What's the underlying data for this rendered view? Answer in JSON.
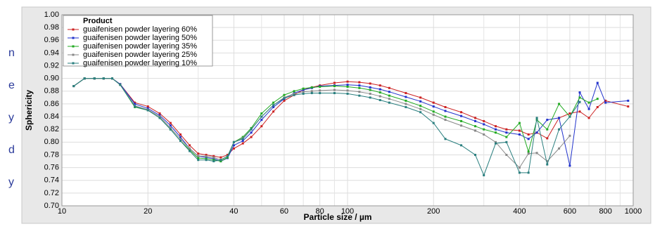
{
  "margin_text": [
    "n",
    "e",
    "y",
    "d",
    "y"
  ],
  "chart_data": {
    "type": "line",
    "xlabel": "Particle size / µm",
    "ylabel": "Sphericity",
    "legend_title": "Product",
    "legend": "top-left",
    "xscale": "log",
    "grid": true,
    "xlim": [
      10,
      1000
    ],
    "xticks": [
      10,
      20,
      40,
      60,
      80,
      100,
      200,
      400,
      600,
      800,
      1000
    ],
    "xminor": [
      30,
      50,
      70,
      90,
      300,
      500,
      700,
      900
    ],
    "ylim": [
      0.7,
      1.0
    ],
    "yticks": [
      {
        "value": 0.7,
        "label": "0.70"
      },
      {
        "value": 0.72,
        "label": "0.72"
      },
      {
        "value": 0.74,
        "label": "0.74"
      },
      {
        "value": 0.76,
        "label": "0.76"
      },
      {
        "value": 0.78,
        "label": "0.78"
      },
      {
        "value": 0.8,
        "label": "0.80"
      },
      {
        "value": 0.82,
        "label": "0.82"
      },
      {
        "value": 0.84,
        "label": "0.84"
      },
      {
        "value": 0.86,
        "label": "0.86"
      },
      {
        "value": 0.88,
        "label": "0.88"
      },
      {
        "value": 0.9,
        "label": "0.90"
      },
      {
        "value": 0.92,
        "label": "0.92"
      },
      {
        "value": 0.94,
        "label": "0.94"
      },
      {
        "value": 0.96,
        "label": "0.96"
      },
      {
        "value": 0.98,
        "label": "0.98"
      },
      {
        "value": 1.0,
        "label": "1.00"
      }
    ],
    "x": [
      11,
      12,
      13,
      14,
      15,
      16,
      18,
      20,
      22,
      24,
      26,
      28,
      30,
      32,
      34,
      36,
      38,
      40,
      43,
      46,
      50,
      55,
      60,
      65,
      70,
      75,
      80,
      90,
      100,
      110,
      120,
      130,
      140,
      160,
      180,
      200,
      220,
      250,
      280,
      300,
      330,
      360,
      400,
      430,
      460,
      500,
      550,
      600,
      650,
      700,
      750,
      800,
      960
    ],
    "series": [
      {
        "name": "guaifenisen powder layering 60%",
        "color": "#cc2222",
        "values": [
          0.888,
          0.9,
          0.9,
          0.9,
          0.9,
          0.891,
          0.862,
          0.856,
          0.845,
          0.83,
          0.812,
          0.795,
          0.782,
          0.78,
          0.778,
          0.776,
          0.78,
          0.79,
          0.798,
          0.808,
          0.825,
          0.848,
          0.865,
          0.874,
          0.882,
          0.886,
          0.889,
          0.893,
          0.895,
          0.894,
          0.892,
          0.889,
          0.885,
          0.877,
          0.87,
          0.862,
          0.855,
          0.847,
          0.838,
          0.833,
          0.825,
          0.82,
          0.818,
          0.812,
          0.815,
          0.806,
          0.838,
          0.845,
          0.848,
          0.838,
          0.855,
          0.865,
          0.856
        ]
      },
      {
        "name": "guaifenisen powder layering 50%",
        "color": "#2233cc",
        "values": [
          0.888,
          0.9,
          0.9,
          0.9,
          0.9,
          0.891,
          0.86,
          0.853,
          0.842,
          0.826,
          0.808,
          0.79,
          0.778,
          0.776,
          0.774,
          0.77,
          0.775,
          0.795,
          0.802,
          0.815,
          0.835,
          0.855,
          0.868,
          0.877,
          0.882,
          0.885,
          0.888,
          0.889,
          0.89,
          0.889,
          0.886,
          0.883,
          0.879,
          0.871,
          0.864,
          0.856,
          0.849,
          0.841,
          0.833,
          0.828,
          0.82,
          0.815,
          0.812,
          0.805,
          0.815,
          0.835,
          0.838,
          0.763,
          0.878,
          0.852,
          0.893,
          0.862,
          0.865
        ]
      },
      {
        "name": "guaifenisen powder layering 35%",
        "color": "#22aa22",
        "values": [
          0.888,
          0.9,
          0.9,
          0.9,
          0.9,
          0.89,
          0.855,
          0.85,
          0.838,
          0.82,
          0.802,
          0.788,
          0.775,
          0.774,
          0.772,
          0.77,
          0.776,
          0.8,
          0.808,
          0.822,
          0.845,
          0.862,
          0.874,
          0.88,
          0.884,
          0.886,
          0.887,
          0.888,
          0.887,
          0.885,
          0.882,
          0.878,
          0.873,
          0.865,
          0.857,
          0.848,
          0.84,
          0.833,
          0.825,
          0.82,
          0.815,
          0.808,
          0.83,
          0.785,
          0.835,
          0.82,
          0.86,
          0.84,
          0.87,
          0.862,
          0.868,
          null,
          null
        ]
      },
      {
        "name": "guaifenisen powder layering 25%",
        "color": "#888888",
        "values": [
          0.888,
          0.9,
          0.9,
          0.9,
          0.9,
          0.89,
          0.857,
          0.851,
          0.84,
          0.822,
          0.805,
          0.79,
          0.778,
          0.778,
          0.776,
          0.772,
          0.778,
          0.8,
          0.806,
          0.82,
          0.84,
          0.858,
          0.87,
          0.876,
          0.879,
          0.88,
          0.881,
          0.882,
          0.881,
          0.879,
          0.876,
          0.872,
          0.868,
          0.86,
          0.852,
          0.843,
          0.835,
          0.826,
          0.818,
          0.812,
          0.8,
          0.78,
          0.76,
          0.782,
          0.783,
          0.77,
          0.79,
          0.81,
          null,
          null,
          null,
          null,
          null
        ]
      },
      {
        "name": "guaifenisen powder layering 10%",
        "color": "#2a7f7f",
        "values": [
          0.888,
          0.9,
          0.9,
          0.9,
          0.9,
          0.89,
          0.856,
          0.85,
          0.838,
          0.82,
          0.802,
          0.786,
          0.772,
          0.772,
          0.77,
          0.772,
          0.778,
          0.8,
          0.805,
          0.82,
          0.84,
          0.858,
          0.869,
          0.874,
          0.876,
          0.877,
          0.877,
          0.877,
          0.876,
          0.873,
          0.87,
          0.866,
          0.862,
          0.855,
          0.847,
          0.83,
          0.805,
          0.795,
          0.78,
          0.748,
          0.798,
          0.8,
          0.752,
          0.752,
          0.838,
          0.765,
          0.82,
          0.84,
          0.863,
          null,
          null,
          null,
          null
        ]
      }
    ]
  }
}
